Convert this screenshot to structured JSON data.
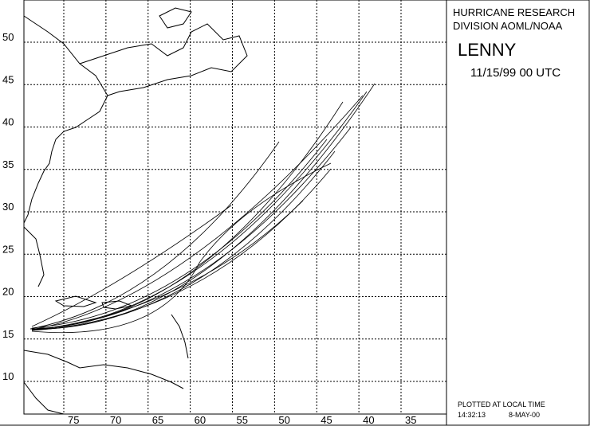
{
  "header": {
    "line1": "HURRICANE RESEARCH",
    "line2": "DIVISION AOML/NOAA",
    "storm": "LENNY",
    "datetime": "11/15/99 00   UTC"
  },
  "map": {
    "lat_ticks": [
      50,
      45,
      40,
      35,
      30,
      25,
      20,
      15,
      10
    ],
    "lon_ticks": [
      75,
      70,
      65,
      60,
      55,
      50,
      45,
      40,
      35
    ]
  },
  "footer": {
    "note": "PLOTTED AT LOCAL TIME",
    "time": "14:32:13",
    "date": "8-MAY-00"
  }
}
